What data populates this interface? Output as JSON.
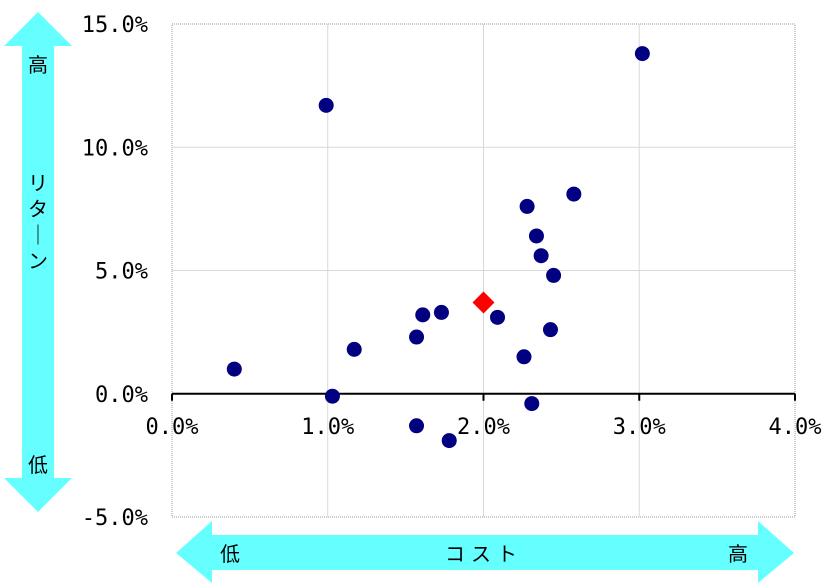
{
  "chart_data": {
    "type": "scatter",
    "title": "",
    "xlabel": "コスト",
    "ylabel": "リターン",
    "xlim": [
      0,
      4
    ],
    "ylim": [
      -5,
      15
    ],
    "x_ticks": [
      "0.0%",
      "1.0%",
      "2.0%",
      "3.0%",
      "4.0%"
    ],
    "y_ticks": [
      "15.0%",
      "10.0%",
      "5.0%",
      "0.0%",
      "-5.0%"
    ],
    "grid": true,
    "x_low_label": "低",
    "x_high_label": "高",
    "y_low_label": "低",
    "y_high_label": "高",
    "series": [
      {
        "color": "#000080",
        "marker": "circle",
        "points": [
          {
            "x": 0.4,
            "y": 1.0
          },
          {
            "x": 0.99,
            "y": 11.7
          },
          {
            "x": 1.03,
            "y": -0.1
          },
          {
            "x": 1.17,
            "y": 1.8
          },
          {
            "x": 1.57,
            "y": 2.3
          },
          {
            "x": 1.57,
            "y": -1.3
          },
          {
            "x": 1.61,
            "y": 3.2
          },
          {
            "x": 1.73,
            "y": 3.3
          },
          {
            "x": 1.78,
            "y": -1.9
          },
          {
            "x": 2.09,
            "y": 3.1
          },
          {
            "x": 2.26,
            "y": 1.5
          },
          {
            "x": 2.28,
            "y": 7.6
          },
          {
            "x": 2.31,
            "y": -0.4
          },
          {
            "x": 2.34,
            "y": 6.4
          },
          {
            "x": 2.37,
            "y": 5.6
          },
          {
            "x": 2.43,
            "y": 2.6
          },
          {
            "x": 2.45,
            "y": 4.8
          },
          {
            "x": 2.58,
            "y": 8.1
          },
          {
            "x": 3.02,
            "y": 13.8
          }
        ]
      },
      {
        "color": "#ff0000",
        "marker": "diamond",
        "points": [
          {
            "x": 2.0,
            "y": 3.7
          }
        ]
      }
    ]
  }
}
